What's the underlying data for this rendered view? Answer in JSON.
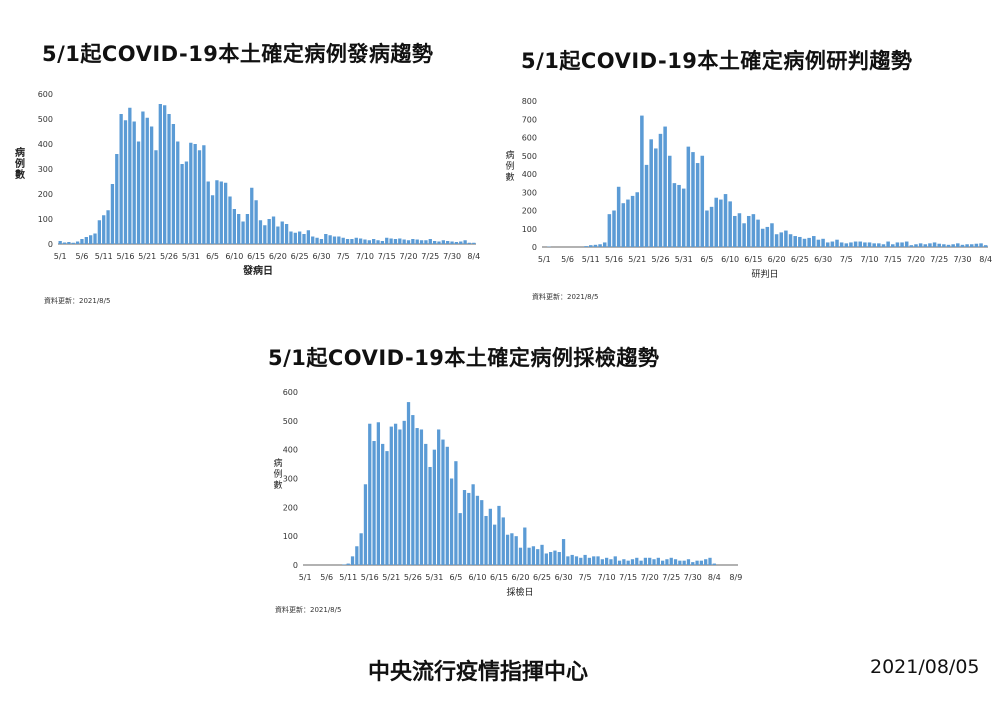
{
  "charts": [
    {
      "title": "5/1起COVID-19本土確定病例發病趨勢"
    },
    {
      "title": "5/1起COVID-19本土確定病例研判趨勢"
    },
    {
      "title": "5/1起COVID-19本土確定病例採檢趨勢"
    }
  ],
  "update_note": "資料更新：2021/8/5",
  "footer": {
    "org": "中央流行疫情指揮中心",
    "date": "2021/08/05"
  },
  "colors": {
    "bar": "#5b9bd5",
    "bar_stroke": "#4a87c0",
    "axis": "#666666"
  },
  "chart_data": [
    {
      "type": "bar",
      "title": "5/1起COVID-19本土確定病例發病趨勢",
      "xlabel": "發病日",
      "ylabel": "病例數",
      "ylim": [
        0,
        600
      ],
      "yticks": [
        0,
        100,
        200,
        300,
        400,
        500,
        600
      ],
      "categories": [
        "5/1",
        "5/2",
        "5/3",
        "5/4",
        "5/5",
        "5/6",
        "5/7",
        "5/8",
        "5/9",
        "5/10",
        "5/11",
        "5/12",
        "5/13",
        "5/14",
        "5/15",
        "5/16",
        "5/17",
        "5/18",
        "5/19",
        "5/20",
        "5/21",
        "5/22",
        "5/23",
        "5/24",
        "5/25",
        "5/26",
        "5/27",
        "5/28",
        "5/29",
        "5/30",
        "5/31",
        "6/1",
        "6/2",
        "6/3",
        "6/4",
        "6/5",
        "6/6",
        "6/7",
        "6/8",
        "6/9",
        "6/10",
        "6/11",
        "6/12",
        "6/13",
        "6/14",
        "6/15",
        "6/16",
        "6/17",
        "6/18",
        "6/19",
        "6/20",
        "6/21",
        "6/22",
        "6/23",
        "6/24",
        "6/25",
        "6/26",
        "6/27",
        "6/28",
        "6/29",
        "6/30",
        "7/1",
        "7/2",
        "7/3",
        "7/4",
        "7/5",
        "7/6",
        "7/7",
        "7/8",
        "7/9",
        "7/10",
        "7/11",
        "7/12",
        "7/13",
        "7/14",
        "7/15",
        "7/16",
        "7/17",
        "7/18",
        "7/19",
        "7/20",
        "7/21",
        "7/22",
        "7/23",
        "7/24",
        "7/25",
        "7/26",
        "7/27",
        "7/28",
        "7/29",
        "7/30",
        "7/31",
        "8/1",
        "8/2",
        "8/3",
        "8/4"
      ],
      "tick_labels": [
        "5/1",
        "5/6",
        "5/11",
        "5/16",
        "5/21",
        "5/26",
        "5/31",
        "6/5",
        "6/10",
        "6/15",
        "6/20",
        "6/25",
        "6/30",
        "7/5",
        "7/10",
        "7/15",
        "7/20",
        "7/25",
        "7/30",
        "8/4"
      ],
      "values": [
        12,
        6,
        8,
        5,
        10,
        20,
        28,
        35,
        42,
        95,
        115,
        135,
        240,
        360,
        520,
        495,
        545,
        490,
        410,
        530,
        505,
        470,
        375,
        560,
        555,
        520,
        480,
        410,
        320,
        330,
        405,
        400,
        375,
        395,
        250,
        195,
        255,
        250,
        245,
        190,
        140,
        120,
        90,
        120,
        225,
        175,
        95,
        75,
        100,
        110,
        70,
        90,
        80,
        50,
        45,
        50,
        40,
        55,
        30,
        25,
        20,
        40,
        35,
        30,
        30,
        25,
        20,
        20,
        25,
        22,
        18,
        15,
        20,
        15,
        12,
        25,
        22,
        20,
        22,
        18,
        15,
        20,
        18,
        15,
        15,
        20,
        12,
        10,
        15,
        12,
        10,
        8,
        10,
        15,
        5,
        5
      ]
    },
    {
      "type": "bar",
      "title": "5/1起COVID-19本土確定病例研判趨勢",
      "xlabel": "研判日",
      "ylabel": "病例數",
      "ylim": [
        0,
        800
      ],
      "yticks": [
        0,
        100,
        200,
        300,
        400,
        500,
        600,
        700,
        800
      ],
      "categories": [
        "5/1",
        "5/2",
        "5/3",
        "5/4",
        "5/5",
        "5/6",
        "5/7",
        "5/8",
        "5/9",
        "5/10",
        "5/11",
        "5/12",
        "5/13",
        "5/14",
        "5/15",
        "5/16",
        "5/17",
        "5/18",
        "5/19",
        "5/20",
        "5/21",
        "5/22",
        "5/23",
        "5/24",
        "5/25",
        "5/26",
        "5/27",
        "5/28",
        "5/29",
        "5/30",
        "5/31",
        "6/1",
        "6/2",
        "6/3",
        "6/4",
        "6/5",
        "6/6",
        "6/7",
        "6/8",
        "6/9",
        "6/10",
        "6/11",
        "6/12",
        "6/13",
        "6/14",
        "6/15",
        "6/16",
        "6/17",
        "6/18",
        "6/19",
        "6/20",
        "6/21",
        "6/22",
        "6/23",
        "6/24",
        "6/25",
        "6/26",
        "6/27",
        "6/28",
        "6/29",
        "6/30",
        "7/1",
        "7/2",
        "7/3",
        "7/4",
        "7/5",
        "7/6",
        "7/7",
        "7/8",
        "7/9",
        "7/10",
        "7/11",
        "7/12",
        "7/13",
        "7/14",
        "7/15",
        "7/16",
        "7/17",
        "7/18",
        "7/19",
        "7/20",
        "7/21",
        "7/22",
        "7/23",
        "7/24",
        "7/25",
        "7/26",
        "7/27",
        "7/28",
        "7/29",
        "7/30",
        "7/31",
        "8/1",
        "8/2",
        "8/3",
        "8/4"
      ],
      "tick_labels": [
        "5/1",
        "5/6",
        "5/11",
        "5/16",
        "5/21",
        "5/26",
        "5/31",
        "6/5",
        "6/10",
        "6/15",
        "6/20",
        "6/25",
        "6/30",
        "7/5",
        "7/10",
        "7/15",
        "7/20",
        "7/25",
        "7/30",
        "8/4"
      ],
      "values": [
        0,
        2,
        0,
        0,
        0,
        0,
        0,
        0,
        0,
        5,
        10,
        12,
        15,
        25,
        180,
        200,
        330,
        240,
        260,
        280,
        300,
        720,
        450,
        590,
        540,
        620,
        660,
        500,
        350,
        340,
        320,
        550,
        520,
        460,
        500,
        200,
        220,
        270,
        260,
        290,
        250,
        170,
        185,
        130,
        170,
        180,
        150,
        100,
        110,
        130,
        70,
        80,
        90,
        70,
        60,
        55,
        45,
        50,
        60,
        40,
        45,
        25,
        30,
        40,
        25,
        20,
        25,
        30,
        30,
        25,
        25,
        20,
        20,
        15,
        30,
        15,
        25,
        25,
        30,
        10,
        15,
        20,
        15,
        20,
        25,
        18,
        15,
        12,
        15,
        20,
        12,
        15,
        15,
        18,
        20,
        10
      ]
    },
    {
      "type": "bar",
      "title": "5/1起COVID-19本土確定病例採檢趨勢",
      "xlabel": "採檢日",
      "ylabel": "病例數",
      "ylim": [
        0,
        600
      ],
      "yticks": [
        0,
        100,
        200,
        300,
        400,
        500,
        600
      ],
      "categories": [
        "5/1",
        "5/2",
        "5/3",
        "5/4",
        "5/5",
        "5/6",
        "5/7",
        "5/8",
        "5/9",
        "5/10",
        "5/11",
        "5/12",
        "5/13",
        "5/14",
        "5/15",
        "5/16",
        "5/17",
        "5/18",
        "5/19",
        "5/20",
        "5/21",
        "5/22",
        "5/23",
        "5/24",
        "5/25",
        "5/26",
        "5/27",
        "5/28",
        "5/29",
        "5/30",
        "5/31",
        "6/1",
        "6/2",
        "6/3",
        "6/4",
        "6/5",
        "6/6",
        "6/7",
        "6/8",
        "6/9",
        "6/10",
        "6/11",
        "6/12",
        "6/13",
        "6/14",
        "6/15",
        "6/16",
        "6/17",
        "6/18",
        "6/19",
        "6/20",
        "6/21",
        "6/22",
        "6/23",
        "6/24",
        "6/25",
        "6/26",
        "6/27",
        "6/28",
        "6/29",
        "6/30",
        "7/1",
        "7/2",
        "7/3",
        "7/4",
        "7/5",
        "7/6",
        "7/7",
        "7/8",
        "7/9",
        "7/10",
        "7/11",
        "7/12",
        "7/13",
        "7/14",
        "7/15",
        "7/16",
        "7/17",
        "7/18",
        "7/19",
        "7/20",
        "7/21",
        "7/22",
        "7/23",
        "7/24",
        "7/25",
        "7/26",
        "7/27",
        "7/28",
        "7/29",
        "7/30",
        "7/31",
        "8/1",
        "8/2",
        "8/3",
        "8/4",
        "8/5",
        "8/6",
        "8/7",
        "8/8",
        "8/9"
      ],
      "tick_labels": [
        "5/1",
        "5/6",
        "5/11",
        "5/16",
        "5/21",
        "5/26",
        "5/31",
        "6/5",
        "6/10",
        "6/15",
        "6/20",
        "6/25",
        "6/30",
        "7/5",
        "7/10",
        "7/15",
        "7/20",
        "7/25",
        "7/30",
        "8/4",
        "8/9"
      ],
      "values": [
        0,
        0,
        0,
        0,
        0,
        0,
        0,
        0,
        0,
        2,
        5,
        30,
        65,
        110,
        280,
        490,
        430,
        495,
        420,
        395,
        480,
        490,
        470,
        500,
        565,
        520,
        475,
        470,
        420,
        340,
        400,
        470,
        435,
        410,
        300,
        360,
        180,
        260,
        250,
        280,
        240,
        225,
        170,
        195,
        140,
        205,
        165,
        105,
        110,
        100,
        60,
        130,
        60,
        65,
        55,
        70,
        40,
        45,
        50,
        45,
        90,
        30,
        35,
        30,
        25,
        35,
        25,
        30,
        30,
        20,
        25,
        20,
        30,
        15,
        20,
        15,
        20,
        25,
        15,
        25,
        25,
        20,
        25,
        15,
        20,
        25,
        20,
        15,
        15,
        20,
        10,
        15,
        15,
        20,
        25,
        5,
        0,
        0,
        0,
        0,
        0
      ]
    }
  ]
}
